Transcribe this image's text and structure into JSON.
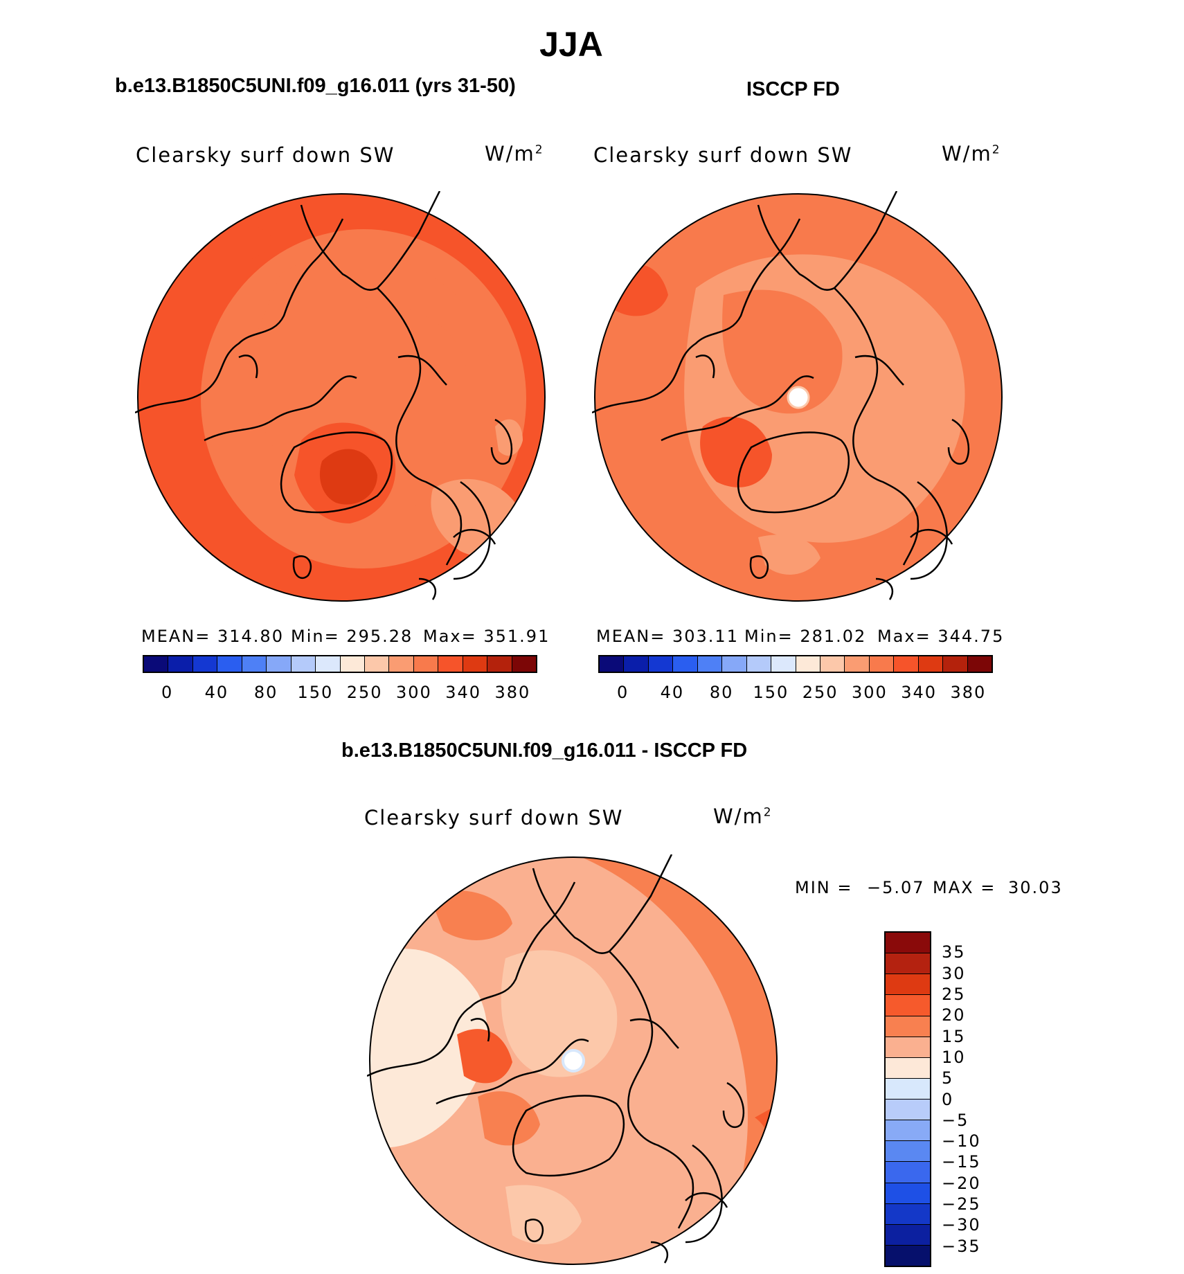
{
  "main_title": "JJA",
  "panels": [
    {
      "title": "b.e13.B1850C5UNI.f09_g16.011 (yrs 31-50)",
      "field_label": "Clearsky surf down SW",
      "unit": "W/m",
      "unit_exp": "2",
      "mean_text": "MEAN= 314.80",
      "min_text": "Min= 295.28",
      "max_text": "Max= 351.91"
    },
    {
      "title": "ISCCP FD",
      "field_label": "Clearsky surf down SW",
      "unit": "W/m",
      "unit_exp": "2",
      "mean_text": "MEAN= 303.11",
      "min_text": "Min= 281.02",
      "max_text": "Max= 344.75"
    }
  ],
  "diff_panel": {
    "title": "b.e13.B1850C5UNI.f09_g16.011 - ISCCP FD",
    "field_label": "Clearsky surf down SW",
    "unit": "W/m",
    "unit_exp": "2",
    "min_label": "MIN =",
    "min_value": "−5.07",
    "max_label": "MAX =",
    "max_value": "30.03"
  },
  "colorbar_abs": {
    "colors": [
      "#0a0a78",
      "#0a1eaa",
      "#1438d2",
      "#2a5ef0",
      "#4e80f6",
      "#86a8f8",
      "#b4cafa",
      "#dce8fc",
      "#fde9d8",
      "#fcc8aa",
      "#fa9c72",
      "#f87a4c",
      "#f6542a",
      "#de3a12",
      "#b4220c",
      "#7c0606"
    ],
    "labels": [
      "0",
      "40",
      "80",
      "150",
      "250",
      "300",
      "340",
      "380"
    ]
  },
  "colorbar_diff": {
    "colors": [
      "#8a0a0a",
      "#b42210",
      "#de3a12",
      "#f65a2c",
      "#f88050",
      "#fab090",
      "#fde8d8",
      "#d8e8fc",
      "#b8ccfa",
      "#88aaf6",
      "#5a88f2",
      "#3a68ee",
      "#1e50e6",
      "#1438c8",
      "#0c20a0",
      "#06106c"
    ],
    "labels": [
      "35",
      "30",
      "25",
      "20",
      "15",
      "10",
      "5",
      "0",
      "−5",
      "−10",
      "−15",
      "−20",
      "−25",
      "−30",
      "−35"
    ]
  },
  "map_colors": {
    "c300": "#fa9c72",
    "c320": "#f87a4c",
    "c340": "#f6542a",
    "c360": "#de3a12",
    "c280": "#fcc8aa",
    "d0": "#fde9d8",
    "d5": "#fcc8aa",
    "d10": "#fab090",
    "d15": "#f88050",
    "d20": "#f65a2c",
    "d25": "#de3a12"
  }
}
